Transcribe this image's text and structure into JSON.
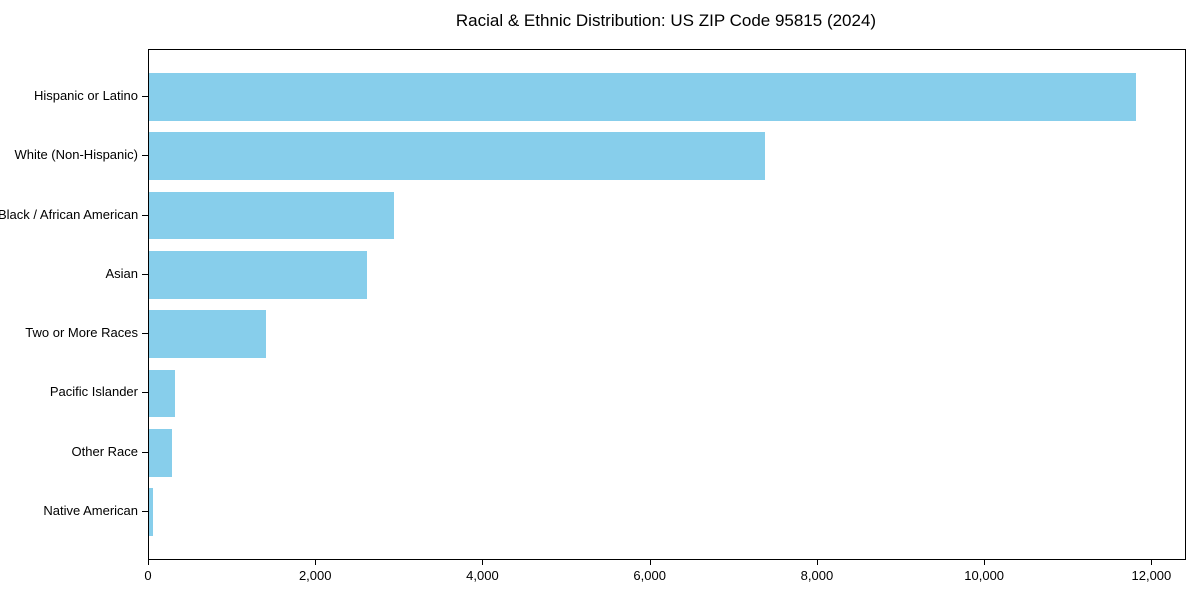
{
  "title": "Racial & Ethnic Distribution: US ZIP Code 95815 (2024)",
  "chart_data": {
    "type": "bar",
    "orientation": "horizontal",
    "title": "Racial & Ethnic Distribution: US ZIP Code 95815 (2024)",
    "xlabel": "",
    "ylabel": "",
    "categories": [
      "Hispanic or Latino",
      "White (Non-Hispanic)",
      "Black / African American",
      "Asian",
      "Two or More Races",
      "Pacific Islander",
      "Other Race",
      "Native American"
    ],
    "values": [
      11800,
      7370,
      2930,
      2610,
      1400,
      315,
      270,
      45
    ],
    "bar_color": "#87CEEB",
    "xlim": [
      0,
      12390
    ],
    "x_ticks": [
      0,
      2000,
      4000,
      6000,
      8000,
      10000,
      12000
    ],
    "x_tick_labels": [
      "0",
      "2,000",
      "4,000",
      "6,000",
      "8,000",
      "10,000",
      "12,000"
    ],
    "grid": false,
    "legend_position": "none",
    "category_order": "largest-at-top"
  }
}
